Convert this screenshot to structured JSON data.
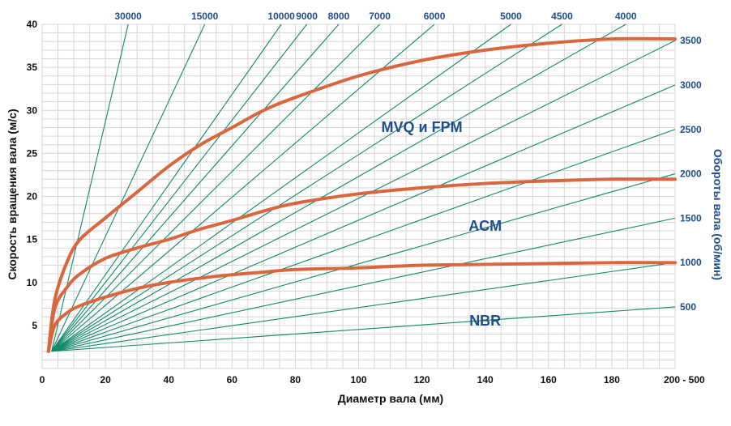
{
  "chart_data": {
    "type": "line",
    "xlabel": "Диаметр вала (мм)",
    "ylabel": "Скорость вращения вала (м/с)",
    "y2label": "Обороты вала (об/мин)",
    "xlim": [
      0,
      200
    ],
    "ylim": [
      0,
      40
    ],
    "x_ticks": [
      "0",
      "20",
      "40",
      "60",
      "80",
      "100",
      "120",
      "140",
      "160",
      "180",
      "200 - 500"
    ],
    "y_ticks": [
      "5",
      "10",
      "15",
      "20",
      "25",
      "30",
      "35",
      "40"
    ],
    "grid": true,
    "rpm_lines": [
      {
        "label": "30000",
        "rpm": 30000,
        "label_pos": "top"
      },
      {
        "label": "15000",
        "rpm": 15000,
        "label_pos": "top"
      },
      {
        "label": "10000",
        "rpm": 10000,
        "label_pos": "top"
      },
      {
        "label": "9000",
        "rpm": 9000,
        "label_pos": "top"
      },
      {
        "label": "8000",
        "rpm": 8000,
        "label_pos": "top"
      },
      {
        "label": "7000",
        "rpm": 7000,
        "label_pos": "top"
      },
      {
        "label": "6000",
        "rpm": 6000,
        "label_pos": "top"
      },
      {
        "label": "5000",
        "rpm": 5000,
        "label_pos": "top"
      },
      {
        "label": "4500",
        "rpm": 4500,
        "label_pos": "top"
      },
      {
        "label": "4000",
        "rpm": 4000,
        "label_pos": "top"
      },
      {
        "label": "3500",
        "rpm": 3500,
        "label_pos": "right"
      },
      {
        "label": "3000",
        "rpm": 3000,
        "label_pos": "right"
      },
      {
        "label": "2500",
        "rpm": 2500,
        "label_pos": "right"
      },
      {
        "label": "2000",
        "rpm": 2000,
        "label_pos": "right"
      },
      {
        "label": "1500",
        "rpm": 1500,
        "label_pos": "right"
      },
      {
        "label": "1000",
        "rpm": 1000,
        "label_pos": "right"
      },
      {
        "label": "500",
        "rpm": 500,
        "label_pos": "right"
      }
    ],
    "series": [
      {
        "name": "MVQ и FPM",
        "x": [
          2,
          4,
          8,
          12,
          20,
          30,
          40,
          50,
          60,
          70,
          80,
          100,
          120,
          140,
          160,
          180,
          200
        ],
        "y": [
          2,
          8,
          12.5,
          15,
          17.5,
          20.5,
          23.5,
          26,
          28,
          30,
          31.5,
          34,
          35.8,
          37,
          37.8,
          38.3,
          38.3
        ]
      },
      {
        "name": "ACM",
        "x": [
          2,
          4,
          8,
          12,
          20,
          30,
          40,
          50,
          60,
          70,
          80,
          100,
          120,
          140,
          160,
          180,
          200
        ],
        "y": [
          2,
          7,
          9.5,
          11,
          12.8,
          14,
          15,
          16.2,
          17.2,
          18.3,
          19.2,
          20.3,
          21,
          21.5,
          21.8,
          22,
          22
        ]
      },
      {
        "name": "NBR",
        "x": [
          2,
          4,
          8,
          12,
          20,
          30,
          40,
          50,
          60,
          70,
          80,
          100,
          120,
          140,
          160,
          180,
          200
        ],
        "y": [
          2,
          5,
          6.5,
          7.3,
          8.3,
          9.3,
          10,
          10.5,
          10.9,
          11.2,
          11.5,
          11.7,
          12,
          12.1,
          12.2,
          12.3,
          12.3
        ]
      }
    ],
    "series_colors": {
      "curves": "#d9663d",
      "rpm_lines": "#0f8a6a",
      "grid": "#d6d6d6",
      "labels": "#1f4e8c"
    }
  }
}
